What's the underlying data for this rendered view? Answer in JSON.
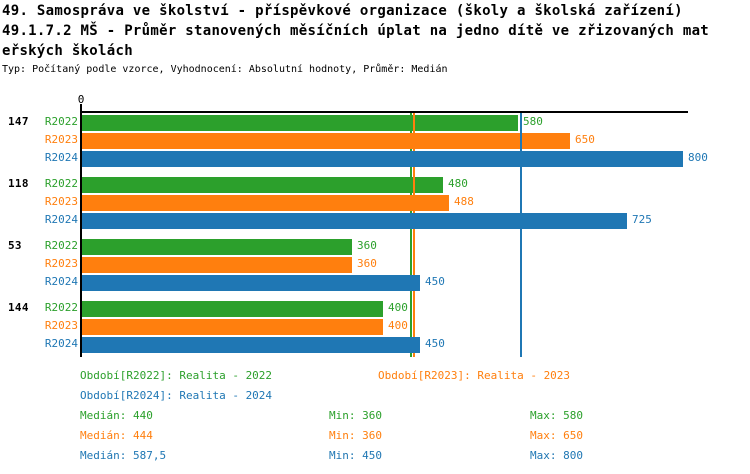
{
  "title": {
    "line1": "49. Samospráva ve školství - příspěvkové organizace (školy a školská zařízení)",
    "line2": "49.1.7.2 MŠ - Průměr stanovených měsíčních úplat na jedno dítě ve zřizovaných mat",
    "line3": "eřských školách",
    "subtitle": "Typ: Počítaný podle vzorce, Vyhodnocení: Absolutní hodnoty, Průměr: Medián"
  },
  "colors": {
    "r2022": "#2ca02c",
    "r2023": "#ff7f0e",
    "r2024": "#1f77b4",
    "axis": "#000000",
    "background": "#ffffff"
  },
  "chart_data": {
    "type": "bar",
    "orientation": "horizontal",
    "title": "49.1.7.2 MŠ - Průměr stanovených měsíčních úplat na jedno dítě ve zřizovaných mateřských školách",
    "xlim": [
      0,
      800
    ],
    "x_tick_labels": [
      "0"
    ],
    "grid": false,
    "legend_position": "bottom",
    "categories": [
      "147",
      "118",
      "53",
      "144"
    ],
    "series": [
      {
        "key": "r2022",
        "name": "R2022",
        "period_label": "Realita - 2022",
        "color": "#2ca02c",
        "values": [
          580,
          480,
          360,
          400
        ],
        "median": 440,
        "min": 360,
        "max": 580
      },
      {
        "key": "r2023",
        "name": "R2023",
        "period_label": "Realita - 2023",
        "color": "#ff7f0e",
        "values": [
          650,
          488,
          360,
          400
        ],
        "median": 444,
        "min": 360,
        "max": 650
      },
      {
        "key": "r2024",
        "name": "R2024",
        "period_label": "Realita - 2024",
        "color": "#1f77b4",
        "values": [
          800,
          725,
          450,
          450
        ],
        "median": 587.5,
        "min": 450,
        "max": 800
      }
    ],
    "median_lines": [
      440,
      444,
      587.5
    ]
  },
  "axis": {
    "zero_label": "0"
  },
  "legend": {
    "r2022": "Období[R2022]: Realita - 2022",
    "r2023": "Období[R2023]: Realita - 2023",
    "r2024": "Období[R2024]: Realita - 2024"
  },
  "stats": [
    {
      "key": "r2022",
      "median": "Medián: 440",
      "min": "Min: 360",
      "max": "Max: 580"
    },
    {
      "key": "r2023",
      "median": "Medián: 444",
      "min": "Min: 360",
      "max": "Max: 650"
    },
    {
      "key": "r2024",
      "median": "Medián: 587,5",
      "min": "Min: 450",
      "max": "Max: 800"
    }
  ]
}
